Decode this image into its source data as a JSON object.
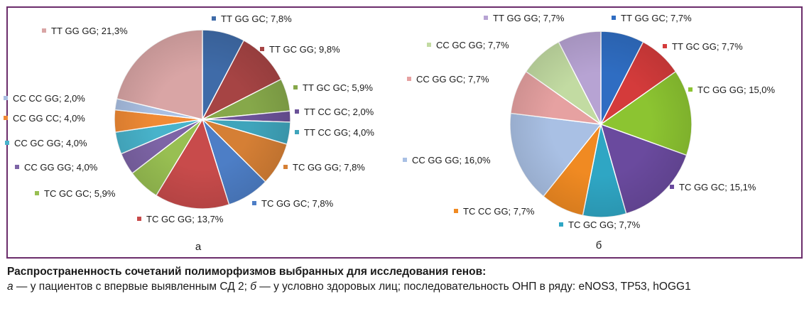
{
  "chart_data": [
    {
      "type": "pie",
      "subtitle": "а",
      "categories": [
        "ТТ GG GC",
        "ТТ GC GG",
        "ТТ GC GC",
        "ТТ CC GC",
        "ТТ CC GG",
        "ТС GG GG",
        "ТС GG GC",
        "ТС GC GG",
        "ТС GC GC",
        "CC GG GG",
        "CC GC GG",
        "CC GG CC",
        "CC CC GG",
        "ТТ GG GG"
      ],
      "labels": [
        "ТТ  GG GC; 7,8%",
        "ТТ GC GG; 9,8%",
        "ТТ GC GC; 5,9%",
        "ТТ CC GC; 2,0%",
        "ТТ CC GG; 4,0%",
        "ТС GG GG; 7,8%",
        "ТС GG GC; 7,8%",
        "ТС GC GG; 13,7%",
        "ТС GC GC; 5,9%",
        "CC GG GG; 4,0%",
        "CC GC GG; 4,0%",
        "CC GG CC; 4,0%",
        "CC CC GG; 2,0%",
        "ТТ GG GG; 21,3%"
      ],
      "values": [
        7.8,
        9.8,
        5.9,
        2.0,
        4.0,
        7.8,
        7.8,
        13.7,
        5.9,
        4.0,
        4.0,
        4.0,
        2.0,
        21.3
      ],
      "colors": [
        "#3f6ba8",
        "#a64444",
        "#86a84a",
        "#6b5298",
        "#3fa4bb",
        "#d57f35",
        "#4d7ec6",
        "#c84b4b",
        "#98bf52",
        "#7d64a6",
        "#48b3cb",
        "#f08a35",
        "#a9bfe2",
        "#d9a5a5"
      ]
    },
    {
      "type": "pie",
      "subtitle": "б",
      "categories": [
        "ТТ GG GC",
        "ТТ GC GG",
        "ТС GG GG",
        "ТС GG GC",
        "ТС GC GG",
        "ТС CC GG",
        "CC GG GG",
        "CC GG GC",
        "CC GC GG",
        "ТТ GG GG"
      ],
      "labels": [
        "ТТ  GG GC; 7,7%",
        "ТТ GC GG; 7,7%",
        "ТС GG GG; 15,0%",
        "ТС GG GC; 15,1%",
        "ТС GC GG; 7,7%",
        "ТС CC GG; 7,7%",
        "CC GG GG; 16,0%",
        "CC GG GC; 7,7%",
        "CC GC GG; 7,7%",
        "ТТ GG GG; 7,7%"
      ],
      "values": [
        7.7,
        7.7,
        15.0,
        15.1,
        7.7,
        7.7,
        16.0,
        7.7,
        7.7,
        7.7
      ],
      "colors": [
        "#2f6dc2",
        "#d43b3b",
        "#8cc431",
        "#6a4a9e",
        "#2fa6c4",
        "#f08a22",
        "#a9c0e4",
        "#e6a1a1",
        "#c2dba2",
        "#b7a3d3"
      ]
    }
  ],
  "caption": {
    "title": "Распространенность сочетаний полиморфизмов выбранных для исследования генов:",
    "a_letter": "а",
    "a_text": " — у пациентов с впервые выявленным СД 2; ",
    "b_letter": "б",
    "b_text": " — у условно здоровых лиц; последовательность ОНП в ряду: eNOS3, TP53, hOGG1"
  }
}
